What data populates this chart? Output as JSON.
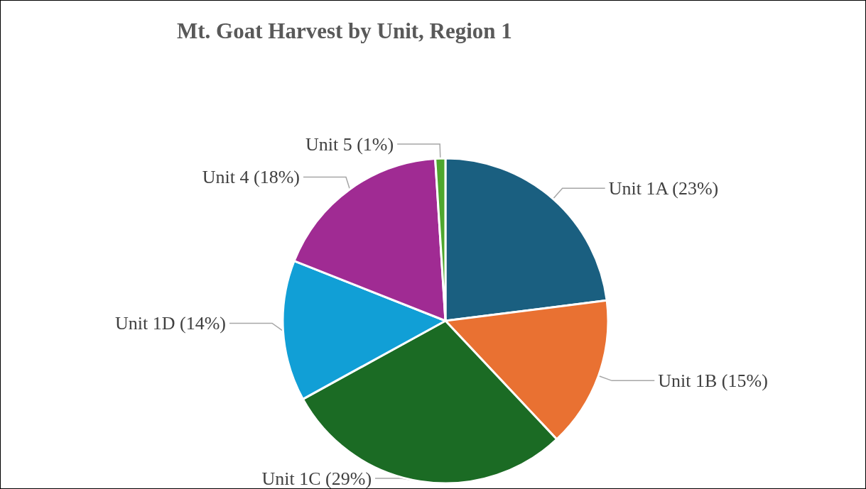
{
  "chart_data": {
    "type": "pie",
    "title": "Mt. Goat Harvest by Unit, Region 1",
    "categories": [
      "Unit 1A",
      "Unit 1B",
      "Unit 1C",
      "Unit 1D",
      "Unit 4",
      "Unit 5"
    ],
    "values": [
      23,
      15,
      29,
      14,
      18,
      1
    ],
    "value_labels": [
      "(23%)",
      "(15%)",
      "(29%)",
      "(14%)",
      "(18%)",
      "(1%)"
    ],
    "colors": [
      "#1a5f80",
      "#e97132",
      "#1b6b24",
      "#119fd6",
      "#a02b93",
      "#4ea72e"
    ],
    "legend": false
  }
}
